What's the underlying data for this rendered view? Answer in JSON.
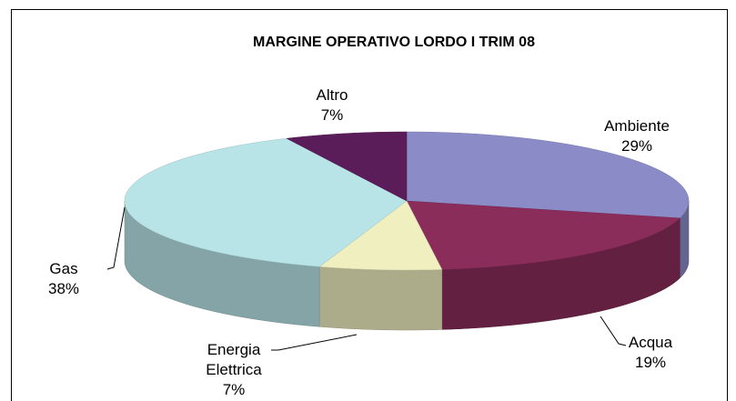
{
  "chart_data": {
    "type": "pie",
    "title": "MARGINE OPERATIVO LORDO I TRIM 08",
    "categories": [
      "Ambiente",
      "Acqua",
      "Energia Elettrica",
      "Gas",
      "Altro"
    ],
    "values": [
      29,
      19,
      7,
      38,
      7
    ],
    "value_labels": [
      "29%",
      "19%",
      "7%",
      "38%",
      "7%"
    ],
    "colors": [
      "#8b8bc8",
      "#8b2d5a",
      "#f0efc0",
      "#b8e4e8",
      "#5a1d5a"
    ]
  }
}
